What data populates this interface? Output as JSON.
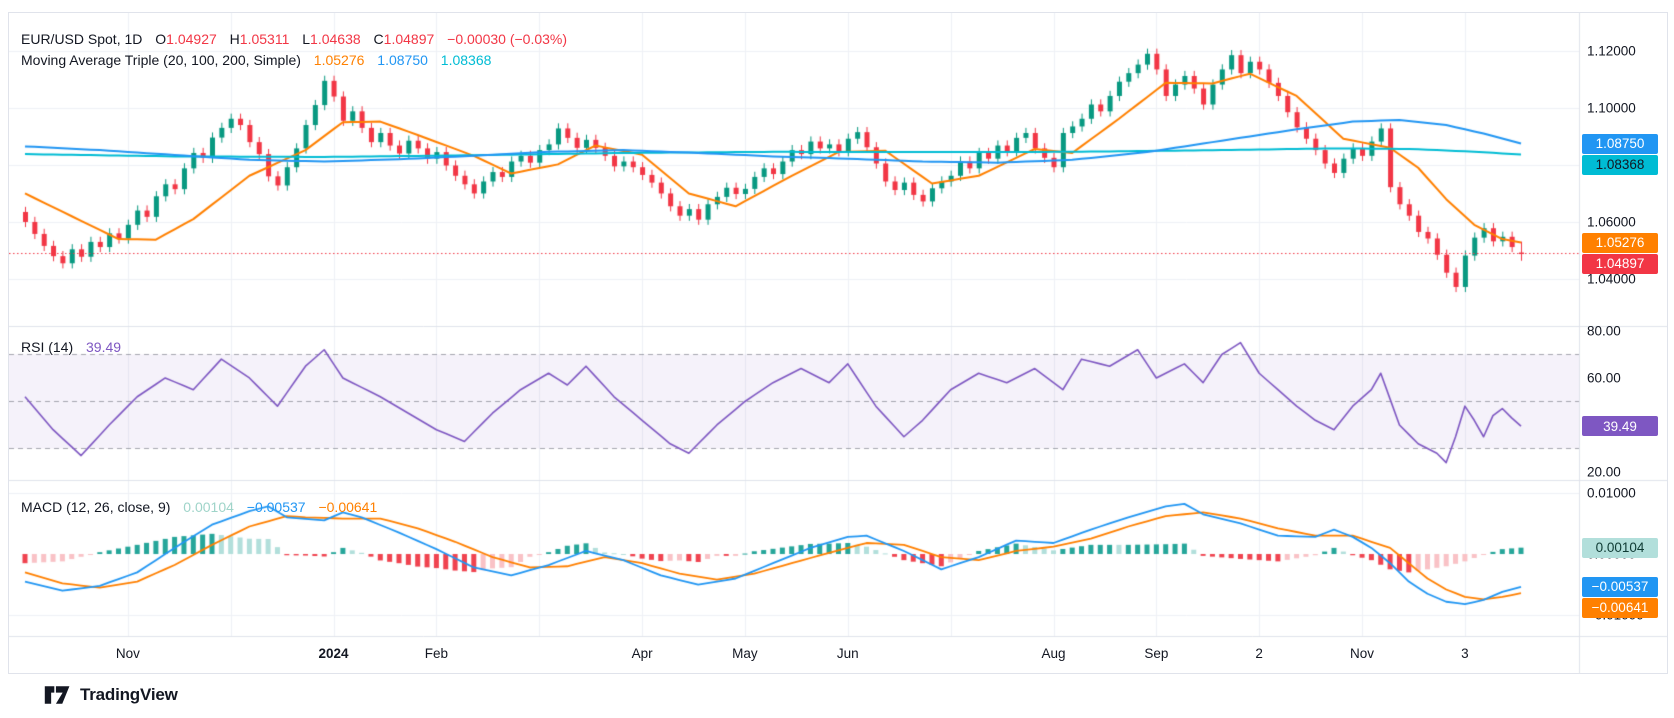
{
  "legend": {
    "title": "EUR/USD Spot, 1D",
    "o_key": "O",
    "o": "1.04927",
    "h_key": "H",
    "h": "1.05311",
    "l_key": "L",
    "l": "1.04638",
    "c_key": "C",
    "c": "1.04897",
    "change": "−0.00030 (−0.03%)",
    "ma_title": "Moving Average Triple (20, 100, 200, Simple)",
    "ma20": "1.05276",
    "ma100": "1.08750",
    "ma200": "1.08368"
  },
  "rsi_legend": {
    "title": "RSI (14)",
    "value": "39.49"
  },
  "macd_legend": {
    "title": "MACD (12, 26, close, 9)",
    "hist": "0.00104",
    "macd": "−0.00537",
    "signal": "−0.00641"
  },
  "footer": {
    "brand": "TradingView"
  },
  "colors": {
    "up": "#089981",
    "down": "#f23645",
    "ma20": "#ff8000",
    "ma100": "#2196f3",
    "ma200": "#00bcd4",
    "rsi": "#7e57c2",
    "rsi_band_fill": "rgba(126,87,194,0.08)",
    "rsi_dash": "rgba(120,123,134,0.65)",
    "macd_line": "#2196f3",
    "macd_signal": "#ff8000",
    "hist_pos_strong": "#26a69a",
    "hist_pos_weak": "#b2dfdb",
    "hist_neg_strong": "#f0434f",
    "hist_neg_weak": "#f9c2c6",
    "grid": "#eef1f6",
    "divider": "#e0e3eb",
    "text": "#131722",
    "price_line": "#f23645"
  },
  "axis": {
    "price_ticks": [
      {
        "label": "1.12000",
        "v": 1.12
      },
      {
        "label": "1.10000",
        "v": 1.1
      },
      {
        "label": "1.08000",
        "v": 1.08
      },
      {
        "label": "1.06000",
        "v": 1.06
      },
      {
        "label": "1.04000",
        "v": 1.04
      }
    ],
    "rsi_ticks": [
      {
        "label": "80.00",
        "v": 80
      },
      {
        "label": "60.00",
        "v": 60
      },
      {
        "label": "20.00",
        "v": 20
      }
    ],
    "macd_ticks": [
      {
        "label": "0.01000",
        "v": 0.01
      },
      {
        "label": "0.00000",
        "v": 0
      },
      {
        "label": "−0.01000",
        "v": -0.01
      }
    ],
    "price_badges": [
      {
        "label": "1.08750",
        "value": 1.0875,
        "bg": "#2196f3",
        "fg": "#ffffff",
        "name": "ma100-badge"
      },
      {
        "label": "1.08368",
        "value": 1.08368,
        "bg": "#00bcd4",
        "fg": "#131722",
        "name": "ma200-badge"
      },
      {
        "label": "1.05276",
        "value": 1.05276,
        "bg": "#ff8000",
        "fg": "#ffffff",
        "name": "ma20-badge"
      },
      {
        "label": "1.04897",
        "value": 1.04897,
        "bg": "#f23645",
        "fg": "#ffffff",
        "name": "last-price-badge"
      }
    ],
    "rsi_badges": [
      {
        "label": "39.49",
        "value": 39.49,
        "bg": "#7e57c2",
        "fg": "#ffffff",
        "name": "rsi-value-badge"
      }
    ],
    "macd_badges": [
      {
        "label": "0.00104",
        "value": 0.00104,
        "bg": "#b2dfdb",
        "fg": "#0f3b34",
        "name": "macd-hist-badge"
      },
      {
        "label": "−0.00537",
        "value": -0.00537,
        "bg": "#2196f3",
        "fg": "#ffffff",
        "name": "macd-line-badge"
      },
      {
        "label": "−0.00641",
        "value": -0.00641,
        "bg": "#ff8000",
        "fg": "#ffffff",
        "name": "macd-signal-badge"
      }
    ]
  },
  "time_axis": {
    "labels": [
      {
        "i": 11,
        "label": "Nov"
      },
      {
        "i": 33,
        "label": "2024",
        "bold": true
      },
      {
        "i": 44,
        "label": "Feb"
      },
      {
        "i": 66,
        "label": "Apr"
      },
      {
        "i": 77,
        "label": "May"
      },
      {
        "i": 88,
        "label": "Jun"
      },
      {
        "i": 110,
        "label": "Aug"
      },
      {
        "i": 121,
        "label": "Sep"
      },
      {
        "i": 132,
        "label": "2"
      },
      {
        "i": 143,
        "label": "Nov"
      },
      {
        "i": 154,
        "label": "3"
      }
    ],
    "gridline_indices": [
      11,
      22,
      33,
      44,
      55,
      66,
      77,
      88,
      99,
      110,
      121,
      132,
      143,
      154
    ]
  },
  "chart_data": {
    "type": "candlestick",
    "symbol": "EUR/USD Spot",
    "interval": "1D",
    "price_pane": {
      "ylim": [
        1.0235,
        1.1333
      ],
      "gridlines": [
        1.04,
        1.06,
        1.08,
        1.1,
        1.12
      ],
      "open_first": 1.0635,
      "wick": 0.0018,
      "price_line": 1.04897,
      "last_candle": {
        "o": 1.04927,
        "h": 1.05311,
        "l": 1.04638,
        "c": 1.04897
      },
      "closes": [
        1.06,
        1.0558,
        1.0516,
        1.048,
        1.0455,
        1.0504,
        1.0478,
        1.053,
        1.0512,
        1.056,
        1.0542,
        1.059,
        1.064,
        1.0618,
        1.069,
        1.0732,
        1.0715,
        1.0788,
        1.0842,
        1.0825,
        1.0896,
        1.093,
        1.0962,
        1.094,
        1.088,
        1.0838,
        1.076,
        1.0728,
        1.0792,
        1.0858,
        1.094,
        1.101,
        1.1095,
        1.104,
        1.0955,
        1.0988,
        1.093,
        1.088,
        1.0912,
        1.0868,
        1.084,
        1.0885,
        1.0858,
        1.0822,
        1.0845,
        1.0798,
        1.0762,
        1.0732,
        1.07,
        1.0742,
        1.0775,
        1.0758,
        1.0812,
        1.0832,
        1.0808,
        1.0852,
        1.0872,
        1.0928,
        1.0895,
        1.086,
        1.0888,
        1.086,
        1.0832,
        1.0795,
        1.0812,
        1.0792,
        1.0765,
        1.0738,
        1.07,
        1.0655,
        1.0622,
        1.0645,
        1.0608,
        1.0662,
        1.0688,
        1.072,
        1.0698,
        1.0716,
        1.0758,
        1.0788,
        1.0768,
        1.0812,
        1.0852,
        1.0838,
        1.0882,
        1.0858,
        1.0872,
        1.0848,
        1.0892,
        1.0915,
        1.0862,
        1.0805,
        1.0742,
        1.0712,
        1.0738,
        1.0695,
        1.0672,
        1.0718,
        1.0742,
        1.0762,
        1.0812,
        1.0788,
        1.0842,
        1.0822,
        1.0868,
        1.0848,
        1.0895,
        1.0912,
        1.0858,
        1.0825,
        1.0792,
        1.0912,
        1.0935,
        1.0962,
        1.1012,
        1.0988,
        1.1042,
        1.1092,
        1.1122,
        1.1152,
        1.119,
        1.1135,
        1.1042,
        1.1082,
        1.1112,
        1.1068,
        1.1012,
        1.1082,
        1.1135,
        1.1185,
        1.1122,
        1.1162,
        1.1135,
        1.1088,
        1.1042,
        1.0985,
        1.0932,
        1.0892,
        1.0852,
        1.0805,
        1.0772,
        1.0822,
        1.0858,
        1.0832,
        1.0882,
        1.0928,
        1.0722,
        1.0662,
        1.0622,
        1.0565,
        1.0542,
        1.0485,
        1.0422,
        1.0372,
        1.0482,
        1.0545,
        1.0578,
        1.0532,
        1.0548,
        1.0512,
        1.04897
      ],
      "ma20_waypoints": [
        [
          0,
          1.07
        ],
        [
          5,
          1.062
        ],
        [
          10,
          1.054
        ],
        [
          14,
          1.0538
        ],
        [
          18,
          1.061
        ],
        [
          24,
          1.0762
        ],
        [
          30,
          1.0852
        ],
        [
          34,
          1.095
        ],
        [
          38,
          1.0952
        ],
        [
          42,
          1.0905
        ],
        [
          48,
          1.0832
        ],
        [
          52,
          1.077
        ],
        [
          57,
          1.0802
        ],
        [
          61,
          1.0868
        ],
        [
          66,
          1.0836
        ],
        [
          71,
          1.07
        ],
        [
          76,
          1.0655
        ],
        [
          82,
          1.0762
        ],
        [
          87,
          1.0845
        ],
        [
          92,
          1.085
        ],
        [
          97,
          1.0735
        ],
        [
          102,
          1.0762
        ],
        [
          108,
          1.0856
        ],
        [
          112,
          1.0842
        ],
        [
          117,
          1.0962
        ],
        [
          122,
          1.1088
        ],
        [
          127,
          1.1086
        ],
        [
          131,
          1.112
        ],
        [
          136,
          1.1042
        ],
        [
          141,
          1.0892
        ],
        [
          146,
          1.086
        ],
        [
          149,
          1.079
        ],
        [
          152,
          1.068
        ],
        [
          155,
          1.059
        ],
        [
          158,
          1.054
        ],
        [
          160,
          1.05276
        ]
      ],
      "ma100_waypoints": [
        [
          0,
          1.0865
        ],
        [
          8,
          1.0852
        ],
        [
          16,
          1.0835
        ],
        [
          24,
          1.0818
        ],
        [
          32,
          1.0812
        ],
        [
          40,
          1.082
        ],
        [
          48,
          1.0832
        ],
        [
          56,
          1.0846
        ],
        [
          64,
          1.0852
        ],
        [
          72,
          1.0842
        ],
        [
          80,
          1.083
        ],
        [
          88,
          1.0822
        ],
        [
          96,
          1.0812
        ],
        [
          104,
          1.0808
        ],
        [
          112,
          1.0818
        ],
        [
          120,
          1.0845
        ],
        [
          128,
          1.0885
        ],
        [
          136,
          1.0925
        ],
        [
          142,
          1.0952
        ],
        [
          147,
          1.0958
        ],
        [
          152,
          1.094
        ],
        [
          156,
          1.091
        ],
        [
          160,
          1.0875
        ]
      ],
      "ma200_waypoints": [
        [
          0,
          1.0838
        ],
        [
          16,
          1.083
        ],
        [
          32,
          1.0828
        ],
        [
          48,
          1.0834
        ],
        [
          64,
          1.0842
        ],
        [
          80,
          1.0846
        ],
        [
          96,
          1.0845
        ],
        [
          112,
          1.0846
        ],
        [
          128,
          1.0852
        ],
        [
          140,
          1.0858
        ],
        [
          148,
          1.0856
        ],
        [
          154,
          1.0848
        ],
        [
          160,
          1.08368
        ]
      ]
    },
    "rsi_pane": {
      "ylim": [
        16.6,
        82.1
      ],
      "band": [
        30,
        70
      ],
      "mid": 50,
      "last": 39.49,
      "waypoints": [
        [
          0,
          52
        ],
        [
          3,
          38
        ],
        [
          6,
          27
        ],
        [
          9,
          40
        ],
        [
          12,
          52
        ],
        [
          15,
          60
        ],
        [
          18,
          55
        ],
        [
          21,
          68
        ],
        [
          24,
          60
        ],
        [
          27,
          48
        ],
        [
          30,
          65
        ],
        [
          32,
          72
        ],
        [
          34,
          60
        ],
        [
          38,
          52
        ],
        [
          41,
          45
        ],
        [
          44,
          38
        ],
        [
          47,
          33
        ],
        [
          50,
          45
        ],
        [
          53,
          55
        ],
        [
          56,
          62
        ],
        [
          58,
          57
        ],
        [
          60,
          65
        ],
        [
          63,
          52
        ],
        [
          66,
          42
        ],
        [
          69,
          32
        ],
        [
          71,
          28
        ],
        [
          74,
          40
        ],
        [
          77,
          50
        ],
        [
          80,
          58
        ],
        [
          83,
          64
        ],
        [
          86,
          58
        ],
        [
          88,
          66
        ],
        [
          91,
          48
        ],
        [
          94,
          35
        ],
        [
          96,
          42
        ],
        [
          99,
          55
        ],
        [
          102,
          62
        ],
        [
          105,
          58
        ],
        [
          108,
          64
        ],
        [
          111,
          55
        ],
        [
          113,
          68
        ],
        [
          116,
          65
        ],
        [
          119,
          72
        ],
        [
          121,
          60
        ],
        [
          124,
          66
        ],
        [
          126,
          58
        ],
        [
          128,
          70
        ],
        [
          130,
          75
        ],
        [
          132,
          62
        ],
        [
          134,
          55
        ],
        [
          136,
          48
        ],
        [
          138,
          42
        ],
        [
          140,
          38
        ],
        [
          142,
          48
        ],
        [
          144,
          55
        ],
        [
          145,
          62
        ],
        [
          147,
          40
        ],
        [
          149,
          32
        ],
        [
          151,
          28
        ],
        [
          152,
          24
        ],
        [
          153,
          35
        ],
        [
          154,
          48
        ],
        [
          155,
          42
        ],
        [
          156,
          35
        ],
        [
          157,
          44
        ],
        [
          158,
          47
        ],
        [
          159,
          43
        ],
        [
          160,
          39.49
        ]
      ]
    },
    "macd_pane": {
      "ylim": [
        -0.0134,
        0.0121
      ],
      "gridlines": [
        0.01,
        -0.01
      ],
      "last_hist": 0.00104,
      "macd_waypoints": [
        [
          0,
          -0.0045
        ],
        [
          4,
          -0.006
        ],
        [
          8,
          -0.0052
        ],
        [
          12,
          -0.003
        ],
        [
          16,
          0.001
        ],
        [
          20,
          0.0048
        ],
        [
          24,
          0.007
        ],
        [
          26,
          0.0078
        ],
        [
          28,
          0.006
        ],
        [
          32,
          0.0055
        ],
        [
          34,
          0.0068
        ],
        [
          36,
          0.006
        ],
        [
          40,
          0.0035
        ],
        [
          44,
          0.0008
        ],
        [
          48,
          -0.0022
        ],
        [
          52,
          -0.0035
        ],
        [
          56,
          -0.0018
        ],
        [
          60,
          0.0005
        ],
        [
          64,
          -0.001
        ],
        [
          68,
          -0.0035
        ],
        [
          72,
          -0.005
        ],
        [
          76,
          -0.004
        ],
        [
          80,
          -0.0015
        ],
        [
          84,
          0.001
        ],
        [
          88,
          0.0028
        ],
        [
          90,
          0.003
        ],
        [
          94,
          0.0005
        ],
        [
          98,
          -0.0025
        ],
        [
          102,
          -0.0005
        ],
        [
          106,
          0.0022
        ],
        [
          110,
          0.0018
        ],
        [
          114,
          0.004
        ],
        [
          118,
          0.006
        ],
        [
          122,
          0.0078
        ],
        [
          124,
          0.0082
        ],
        [
          126,
          0.0065
        ],
        [
          130,
          0.005
        ],
        [
          134,
          0.003
        ],
        [
          138,
          0.0028
        ],
        [
          140,
          0.004
        ],
        [
          142,
          0.0028
        ],
        [
          144,
          0.001
        ],
        [
          146,
          -0.0015
        ],
        [
          148,
          -0.0045
        ],
        [
          150,
          -0.0065
        ],
        [
          152,
          -0.0078
        ],
        [
          154,
          -0.0082
        ],
        [
          156,
          -0.0075
        ],
        [
          158,
          -0.0062
        ],
        [
          160,
          -0.00537
        ]
      ],
      "signal_waypoints": [
        [
          0,
          -0.003
        ],
        [
          4,
          -0.0048
        ],
        [
          8,
          -0.0055
        ],
        [
          12,
          -0.0045
        ],
        [
          16,
          -0.0018
        ],
        [
          20,
          0.0015
        ],
        [
          24,
          0.0045
        ],
        [
          28,
          0.0062
        ],
        [
          30,
          0.006
        ],
        [
          34,
          0.0058
        ],
        [
          38,
          0.0058
        ],
        [
          42,
          0.0042
        ],
        [
          46,
          0.002
        ],
        [
          50,
          -0.0005
        ],
        [
          54,
          -0.0022
        ],
        [
          58,
          -0.002
        ],
        [
          62,
          -0.0005
        ],
        [
          66,
          -0.0015
        ],
        [
          70,
          -0.0032
        ],
        [
          74,
          -0.0042
        ],
        [
          78,
          -0.0032
        ],
        [
          82,
          -0.0015
        ],
        [
          86,
          0.0002
        ],
        [
          90,
          0.0018
        ],
        [
          94,
          0.0015
        ],
        [
          98,
          -0.0005
        ],
        [
          102,
          -0.001
        ],
        [
          106,
          0.0005
        ],
        [
          110,
          0.0012
        ],
        [
          114,
          0.0025
        ],
        [
          118,
          0.0045
        ],
        [
          122,
          0.0062
        ],
        [
          126,
          0.0068
        ],
        [
          130,
          0.0058
        ],
        [
          134,
          0.0042
        ],
        [
          138,
          0.003
        ],
        [
          142,
          0.003
        ],
        [
          146,
          0.001
        ],
        [
          148,
          -0.0015
        ],
        [
          150,
          -0.004
        ],
        [
          152,
          -0.0058
        ],
        [
          154,
          -0.007
        ],
        [
          156,
          -0.0074
        ],
        [
          158,
          -0.007
        ],
        [
          160,
          -0.00641
        ]
      ]
    }
  }
}
